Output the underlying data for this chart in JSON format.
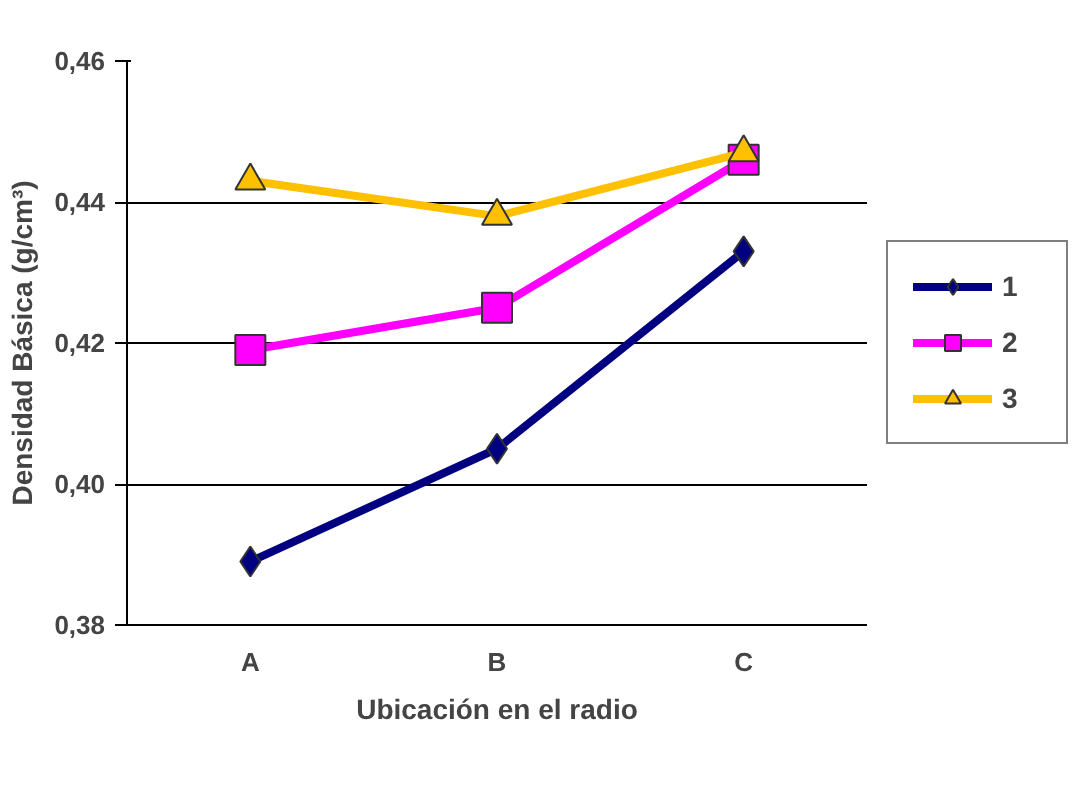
{
  "chart_data": {
    "type": "line",
    "xlabel": "Ubicación en el radio",
    "ylabel": "Densidad Básica (g/cm³)",
    "categories": [
      "A",
      "B",
      "C"
    ],
    "series": [
      {
        "name": "1",
        "color": "#000080",
        "marker": "diamond",
        "values": [
          0.389,
          0.405,
          0.433
        ]
      },
      {
        "name": "2",
        "color": "#ff00ff",
        "marker": "square",
        "values": [
          0.419,
          0.425,
          0.446
        ]
      },
      {
        "name": "3",
        "color": "#ffc000",
        "marker": "triangle",
        "values": [
          0.443,
          0.438,
          0.447
        ]
      }
    ],
    "ylim": [
      0.38,
      0.46
    ],
    "yticks": [
      {
        "value": 0.38,
        "label": "0,38"
      },
      {
        "value": 0.4,
        "label": "0,40"
      },
      {
        "value": 0.42,
        "label": "0,42"
      },
      {
        "value": 0.44,
        "label": "0,44"
      },
      {
        "value": 0.46,
        "label": "0,46"
      }
    ],
    "grid": "y",
    "legend": "right",
    "line_style": "solid"
  }
}
